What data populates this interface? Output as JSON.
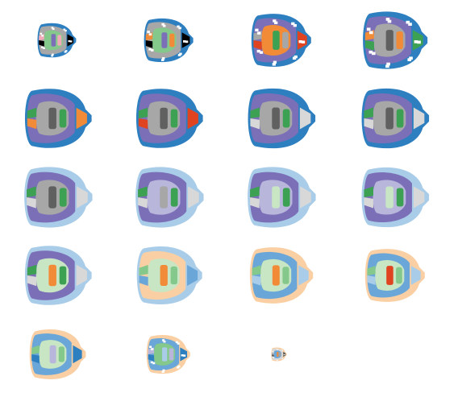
{
  "figure": {
    "columns": 4,
    "rows": 5,
    "slice_count": 19
  },
  "palette": {
    "dark_blue": "#2e7fc0",
    "light_blue": "#a9cde9",
    "mid_blue": "#6aa6d8",
    "purple": "#7b6fb8",
    "lavender": "#b9b6dc",
    "gray": "#a7a7a7",
    "dark_gray": "#606060",
    "light_gray": "#d8d8d8",
    "green": "#3da153",
    "light_green": "#84c98b",
    "pale_green": "#c8e6c4",
    "orange": "#f28b38",
    "peach": "#f9cfa3",
    "red": "#e0431f",
    "pink": "#f4a9b8"
  },
  "slices": [
    {
      "stage": 1,
      "scale": 0.55,
      "fragmented": true,
      "regions": [
        "dark_blue",
        "gray",
        "light_green",
        "purple",
        "pink"
      ]
    },
    {
      "stage": 2,
      "scale": 0.7,
      "fragmented": true,
      "regions": [
        "dark_blue",
        "gray",
        "light_green",
        "purple",
        "orange"
      ]
    },
    {
      "stage": 3,
      "scale": 0.85,
      "fragmented": true,
      "regions": [
        "dark_blue",
        "purple",
        "orange",
        "green",
        "gray",
        "red"
      ]
    },
    {
      "stage": 4,
      "scale": 0.92,
      "fragmented": true,
      "regions": [
        "dark_blue",
        "purple",
        "gray",
        "dark_gray",
        "orange",
        "green"
      ]
    },
    {
      "stage": 5,
      "scale": 0.95,
      "fragmented": false,
      "regions": [
        "dark_blue",
        "purple",
        "gray",
        "dark_gray",
        "green",
        "orange"
      ]
    },
    {
      "stage": 6,
      "scale": 0.95,
      "fragmented": false,
      "regions": [
        "dark_blue",
        "purple",
        "gray",
        "dark_gray",
        "green",
        "red"
      ]
    },
    {
      "stage": 7,
      "scale": 0.96,
      "fragmented": false,
      "regions": [
        "dark_blue",
        "purple",
        "gray",
        "dark_gray",
        "green",
        "light_gray"
      ]
    },
    {
      "stage": 8,
      "scale": 0.96,
      "fragmented": false,
      "regions": [
        "dark_blue",
        "purple",
        "gray",
        "dark_gray",
        "green",
        "light_gray"
      ]
    },
    {
      "stage": 9,
      "scale": 0.97,
      "fragmented": false,
      "regions": [
        "light_blue",
        "purple",
        "gray",
        "dark_gray",
        "green",
        "light_gray"
      ]
    },
    {
      "stage": 10,
      "scale": 0.97,
      "fragmented": false,
      "regions": [
        "light_blue",
        "purple",
        "lavender",
        "gray",
        "green",
        "light_gray"
      ]
    },
    {
      "stage": 11,
      "scale": 0.97,
      "fragmented": false,
      "regions": [
        "light_blue",
        "purple",
        "lavender",
        "pale_green",
        "green",
        "light_gray"
      ]
    },
    {
      "stage": 12,
      "scale": 0.96,
      "fragmented": false,
      "regions": [
        "light_blue",
        "purple",
        "lavender",
        "pale_green",
        "green",
        "light_gray"
      ]
    },
    {
      "stage": 13,
      "scale": 0.95,
      "fragmented": false,
      "regions": [
        "light_blue",
        "purple",
        "pale_green",
        "orange",
        "green",
        "light_gray"
      ]
    },
    {
      "stage": 14,
      "scale": 0.93,
      "fragmented": false,
      "regions": [
        "light_blue",
        "peach",
        "pale_green",
        "orange",
        "light_green",
        "mid_blue"
      ]
    },
    {
      "stage": 15,
      "scale": 0.9,
      "fragmented": false,
      "regions": [
        "peach",
        "mid_blue",
        "pale_green",
        "orange",
        "light_green",
        "light_blue"
      ]
    },
    {
      "stage": 16,
      "scale": 0.85,
      "fragmented": false,
      "regions": [
        "peach",
        "mid_blue",
        "pale_green",
        "red",
        "light_green",
        "light_blue"
      ]
    },
    {
      "stage": 17,
      "scale": 0.8,
      "fragmented": false,
      "regions": [
        "peach",
        "mid_blue",
        "pale_green",
        "lavender",
        "light_green",
        "dark_blue"
      ]
    },
    {
      "stage": 18,
      "scale": 0.62,
      "fragmented": true,
      "regions": [
        "peach",
        "mid_blue",
        "light_green",
        "light_blue",
        "lavender",
        "dark_blue"
      ]
    },
    {
      "stage": 19,
      "scale": 0.22,
      "fragmented": true,
      "regions": [
        "peach",
        "light_gray",
        "mid_blue",
        "orange",
        "gray",
        "dark_gray"
      ]
    }
  ]
}
